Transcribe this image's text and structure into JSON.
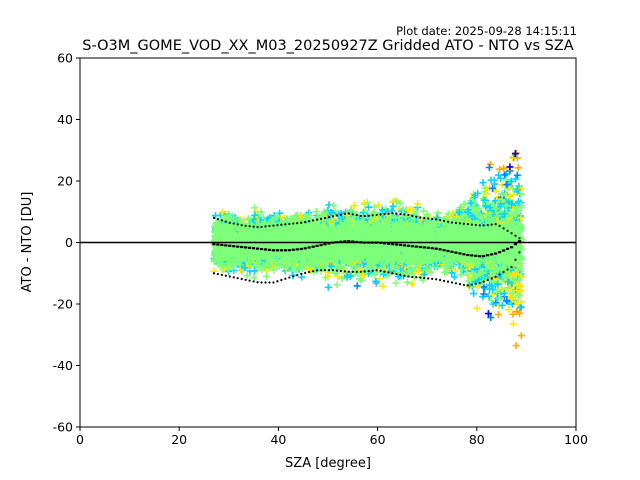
{
  "chart_data": {
    "type": "scatter",
    "title": "S-O3M_GOME_VOD_XX_M03_20250927Z Gridded ATO - NTO vs SZA",
    "plot_date": "Plot date: 2025-09-28 14:15:11",
    "xlabel": "SZA [degree]",
    "ylabel": "ATO - NTO [DU]",
    "xlim": [
      0,
      100
    ],
    "ylim": [
      -60,
      60
    ],
    "xticks": [
      "0",
      "20",
      "40",
      "60",
      "80",
      "100"
    ],
    "yticks": [
      "-60",
      "-40",
      "-20",
      "0",
      "20",
      "40",
      "60"
    ],
    "grid": false,
    "zero_line": 0,
    "point_cloud": {
      "marker": "+",
      "sza_range": [
        27,
        89
      ],
      "colors": [
        "#0000ff",
        "#0080ff",
        "#00d4ff",
        "#7dff7a",
        "#ffe600",
        "#ffaa00"
      ],
      "band_center_dominant_color": "#7dff7a"
    },
    "series": [
      {
        "name": "median",
        "style": "black-dash",
        "x": [
          27,
          30,
          33,
          36,
          39,
          42,
          45,
          48,
          51,
          54,
          57,
          60,
          63,
          66,
          69,
          72,
          75,
          78,
          81,
          84,
          87,
          89
        ],
        "y": [
          -0.5,
          -1,
          -1.5,
          -2,
          -2.5,
          -2.5,
          -2,
          -1,
          0,
          0.5,
          0,
          0,
          -0.5,
          -1,
          -1.5,
          -2,
          -3,
          -4,
          -4.5,
          -3.5,
          -1.5,
          1
        ]
      },
      {
        "name": "upper spread",
        "style": "black-dots",
        "x": [
          27,
          30,
          33,
          36,
          39,
          42,
          45,
          48,
          51,
          54,
          57,
          60,
          63,
          66,
          69,
          72,
          75,
          78,
          81,
          84,
          87,
          89
        ],
        "y": [
          8,
          6.5,
          5.5,
          5,
          5.5,
          6,
          6.5,
          7.5,
          8.5,
          9.5,
          8.5,
          9,
          9.5,
          9,
          8,
          7.5,
          6.5,
          6,
          5.5,
          6,
          3,
          1
        ]
      },
      {
        "name": "lower spread",
        "style": "black-dots",
        "x": [
          27,
          30,
          33,
          36,
          39,
          42,
          45,
          48,
          51,
          54,
          57,
          60,
          63,
          66,
          69,
          72,
          75,
          78,
          81,
          84,
          87,
          89
        ],
        "y": [
          -10,
          -11,
          -12,
          -13,
          -13,
          -11.5,
          -10,
          -9,
          -9,
          -9.5,
          -9.5,
          -9,
          -10,
          -11,
          -11.5,
          -12,
          -13,
          -14,
          -13,
          -11,
          -8,
          -2
        ]
      }
    ]
  }
}
